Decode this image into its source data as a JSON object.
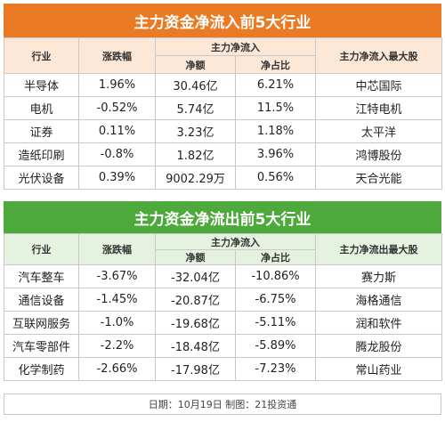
{
  "inflow": {
    "title": "主力资金净流入前5大行业",
    "headers": {
      "industry": "行业",
      "change": "涨跌幅",
      "group": "主力净流入",
      "amount": "净额",
      "ratio": "净占比",
      "top_stock": "主力净流入最大股"
    },
    "rows": [
      {
        "industry": "半导体",
        "change": "1.96%",
        "amount": "30.46亿",
        "ratio": "6.21%",
        "stock": "中芯国际"
      },
      {
        "industry": "电机",
        "change": "-0.52%",
        "amount": "5.74亿",
        "ratio": "11.5%",
        "stock": "江特电机"
      },
      {
        "industry": "证券",
        "change": "0.11%",
        "amount": "3.23亿",
        "ratio": "1.18%",
        "stock": "太平洋"
      },
      {
        "industry": "造纸印刷",
        "change": "-0.8%",
        "amount": "1.82亿",
        "ratio": "3.96%",
        "stock": "鸿博股份"
      },
      {
        "industry": "光伏设备",
        "change": "0.39%",
        "amount": "9002.29万",
        "ratio": "0.56%",
        "stock": "天合光能"
      }
    ]
  },
  "outflow": {
    "title": "主力资金净流出前5大行业",
    "headers": {
      "industry": "行业",
      "change": "涨跌幅",
      "group": "主力净流入",
      "amount": "净额",
      "ratio": "净占比",
      "top_stock": "主力净流出最大股"
    },
    "rows": [
      {
        "industry": "汽车整车",
        "change": "-3.67%",
        "amount": "-32.04亿",
        "ratio": "-10.86%",
        "stock": "赛力斯"
      },
      {
        "industry": "通信设备",
        "change": "-1.45%",
        "amount": "-20.87亿",
        "ratio": "-6.75%",
        "stock": "海格通信"
      },
      {
        "industry": "互联网服务",
        "change": "-1.0%",
        "amount": "-19.68亿",
        "ratio": "-5.11%",
        "stock": "润和软件"
      },
      {
        "industry": "汽车零部件",
        "change": "-2.2%",
        "amount": "-18.48亿",
        "ratio": "-5.89%",
        "stock": "腾龙股份"
      },
      {
        "industry": "化学制药",
        "change": "-2.66%",
        "amount": "-17.98亿",
        "ratio": "-7.23%",
        "stock": "常山药业"
      }
    ]
  },
  "footer": "日期：10月19日 制图：21投资通",
  "colors": {
    "inflow_banner": "#ea7a23",
    "outflow_banner": "#4ea93c"
  }
}
